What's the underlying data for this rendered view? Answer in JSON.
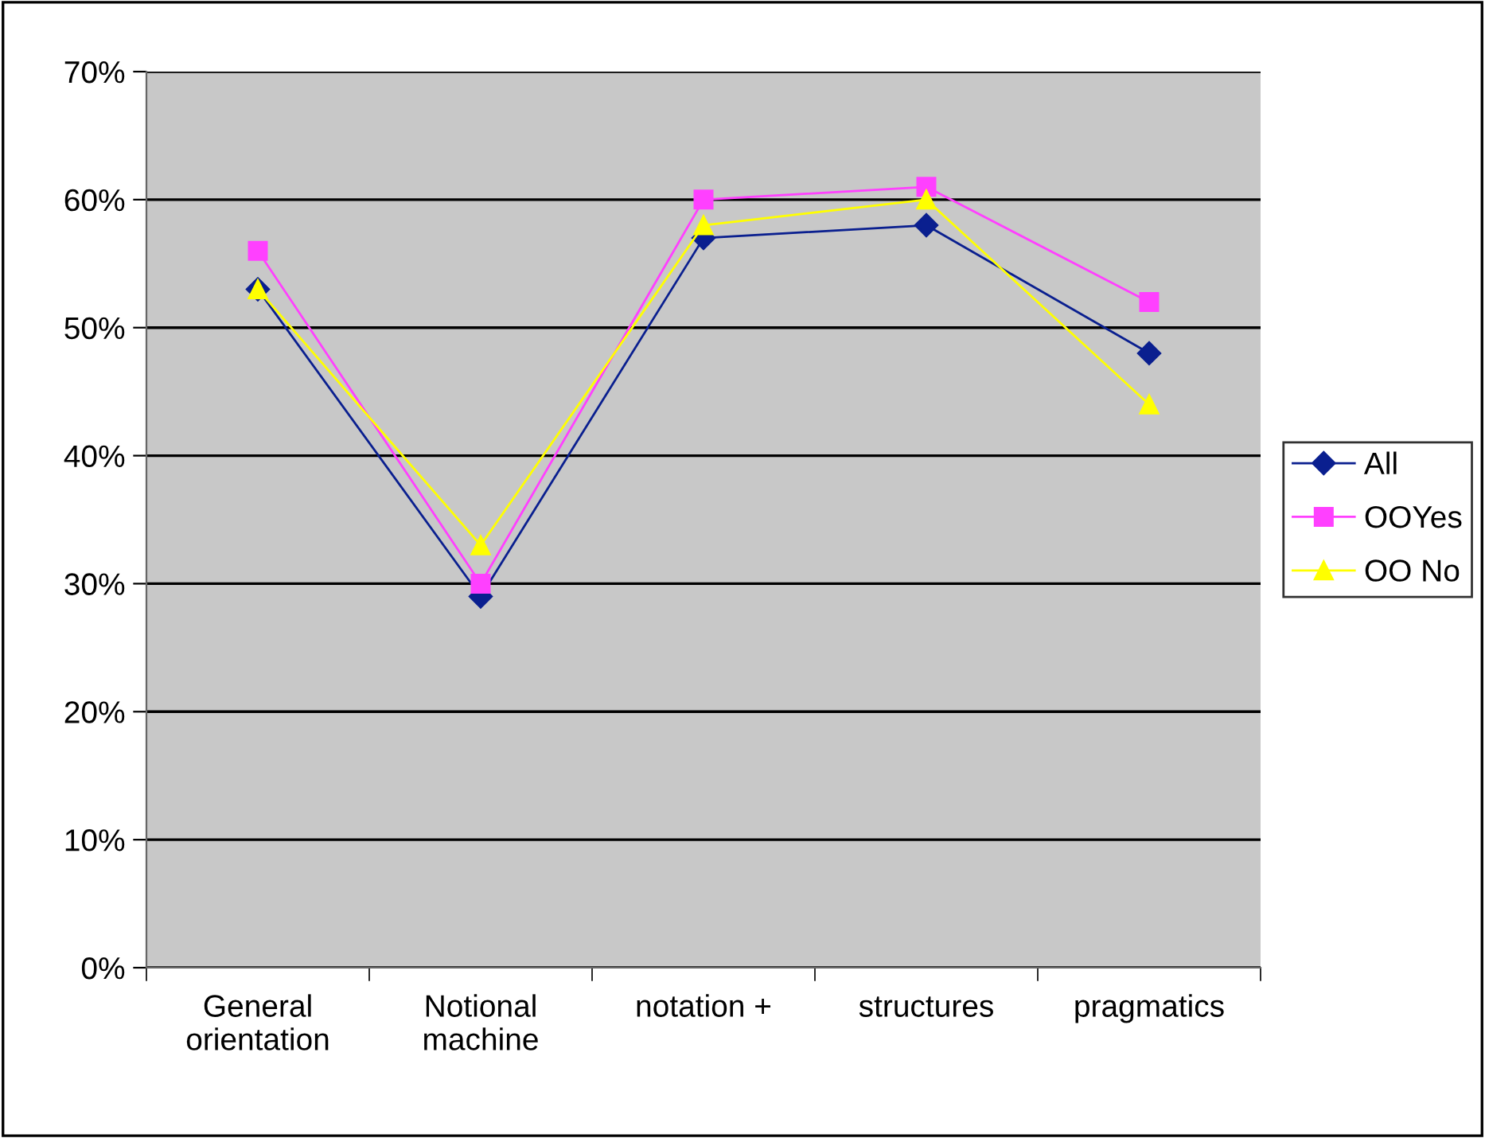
{
  "chart_data": {
    "type": "line",
    "categories": [
      "General\norientation",
      "Notional\nmachine",
      "notation +",
      "structures",
      "pragmatics"
    ],
    "series": [
      {
        "name": "All",
        "color": "#0a1f8f",
        "marker": "diamond",
        "values": [
          53,
          29,
          57,
          58,
          48
        ]
      },
      {
        "name": "OOYes",
        "color": "#ff40ff",
        "marker": "square",
        "values": [
          56,
          30,
          60,
          61,
          52
        ]
      },
      {
        "name": "OO No",
        "color": "#ffff00",
        "marker": "triangle",
        "values": [
          53,
          33,
          58,
          60,
          44
        ]
      }
    ],
    "ylim": [
      0,
      70
    ],
    "yticks": [
      {
        "value": 0,
        "label": "0%"
      },
      {
        "value": 10,
        "label": "10%"
      },
      {
        "value": 20,
        "label": "20%"
      },
      {
        "value": 30,
        "label": "30%"
      },
      {
        "value": 40,
        "label": "40%"
      },
      {
        "value": 50,
        "label": "50%"
      },
      {
        "value": 60,
        "label": "60%"
      },
      {
        "value": 70,
        "label": "70%"
      }
    ],
    "grid": "y",
    "legend": "right",
    "line_style": "solid"
  }
}
